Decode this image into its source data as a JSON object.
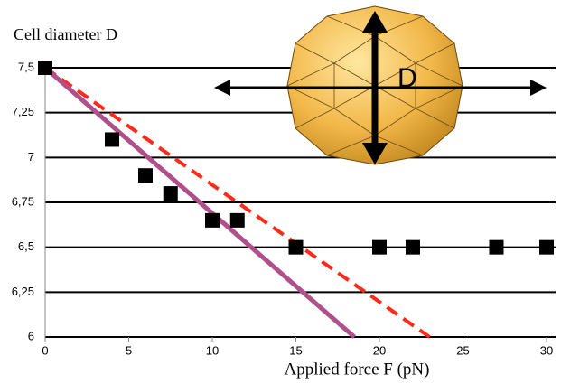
{
  "chart_data": {
    "type": "scatter",
    "y_label": "Cell diameter D",
    "x_label": "Applied force F (pN)",
    "annotation": "D",
    "xlim": [
      0,
      30
    ],
    "ylim": [
      6,
      7.5
    ],
    "xticks": [
      0,
      5,
      10,
      15,
      20,
      25,
      30
    ],
    "yticks": [
      {
        "value": 6,
        "label": "6"
      },
      {
        "value": 6.25,
        "label": "6,25"
      },
      {
        "value": 6.5,
        "label": "6,5"
      },
      {
        "value": 6.75,
        "label": "6,75"
      },
      {
        "value": 7,
        "label": "7"
      },
      {
        "value": 7.25,
        "label": "7,25"
      },
      {
        "value": 7.5,
        "label": "7,5"
      }
    ],
    "grid": true,
    "series": [
      {
        "mode": "markers",
        "color": "#000000",
        "x": [
          0,
          4,
          6,
          7.5,
          10,
          11.5,
          15,
          20,
          22,
          27,
          30
        ],
        "values": [
          7.5,
          7.1,
          6.9,
          6.8,
          6.65,
          6.65,
          6.5,
          6.5,
          6.5,
          6.5,
          6.5
        ]
      },
      {
        "mode": "line",
        "dash": true,
        "color": "#ff2a1a",
        "x": [
          0,
          23
        ],
        "values": [
          7.5,
          6
        ]
      },
      {
        "mode": "line",
        "dash": false,
        "color": "#b0508a",
        "x": [
          0,
          18.5
        ],
        "values": [
          7.5,
          6
        ]
      }
    ]
  }
}
